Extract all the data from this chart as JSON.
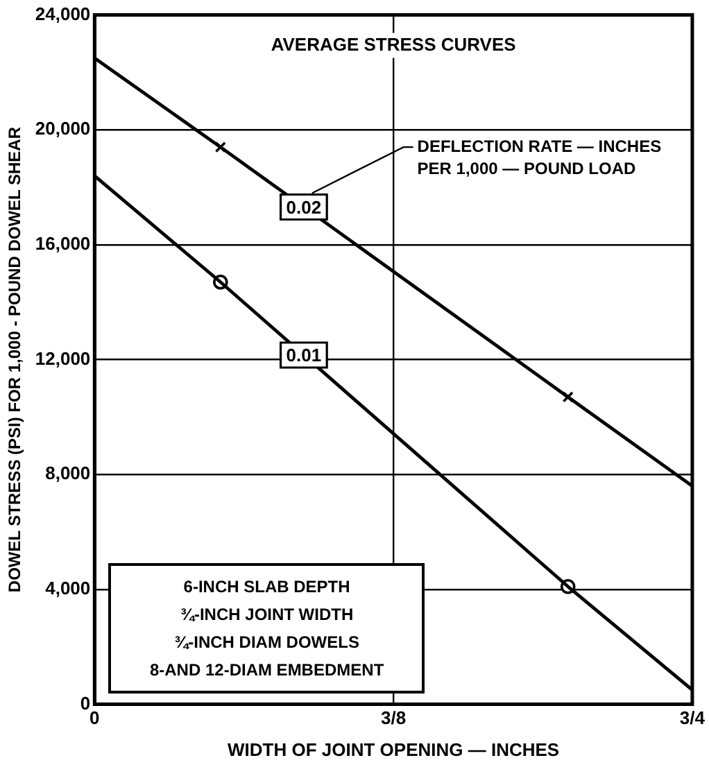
{
  "chart_data": {
    "type": "line",
    "title": "AVERAGE STRESS CURVES",
    "xlabel": "WIDTH OF JOINT OPENING — INCHES",
    "ylabel": "DOWEL STRESS (PSI) FOR 1,000 - POUND DOWEL SHEAR",
    "legend_title": "DEFLECTION RATE — INCHES PER 1,000 — POUND LOAD",
    "series": [
      {
        "name": "0.02",
        "type": "line",
        "color": "#000000",
        "marker": "none",
        "x": [
          0,
          0.158,
          0.594,
          0.75
        ],
        "values": [
          22500,
          19400,
          10700,
          7600
        ]
      },
      {
        "type": "scatter",
        "color": "#000000",
        "marker": "cross",
        "x": [
          0.158,
          0.594
        ],
        "values": [
          19400,
          10700
        ]
      },
      {
        "name": "0.01",
        "type": "line",
        "color": "#000000",
        "marker": "none",
        "x": [
          0,
          0.158,
          0.594,
          0.75
        ],
        "values": [
          18400,
          14700,
          4100,
          500
        ]
      },
      {
        "type": "scatter",
        "color": "#000000",
        "marker": "circle",
        "x": [
          0.158,
          0.594
        ],
        "values": [
          14700,
          4100
        ]
      }
    ],
    "xlim": [
      0,
      0.75
    ],
    "xticks": [
      0,
      {
        "value": 0.375,
        "label": "3/8"
      },
      {
        "value": 0.75,
        "label": "3/4"
      }
    ],
    "ylim": [
      0,
      24000
    ],
    "yticks": [
      0,
      {
        "value": 4000,
        "label": "4,000"
      },
      {
        "value": 8000,
        "label": "8,000"
      },
      {
        "value": 12000,
        "label": "12,000"
      },
      {
        "value": 16000,
        "label": "16,000"
      },
      {
        "value": 20000,
        "label": "20,000"
      },
      {
        "value": 24000,
        "label": "24,000"
      }
    ],
    "grid": true,
    "legend": false,
    "line_style": "solid",
    "annotations": [
      "6-INCH SLAB DEPTH",
      "¾-INCH JOINT WIDTH",
      "¾-INCH DIAM DOWELS",
      "8-AND 12-DIAM EMBEDMENT"
    ]
  }
}
